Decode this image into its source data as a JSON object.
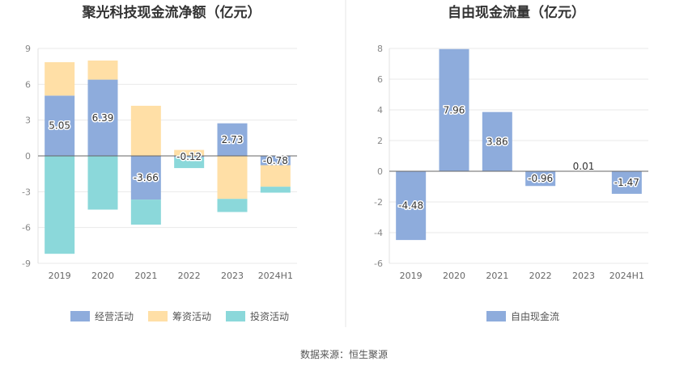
{
  "footer": {
    "source": "数据来源：恒生聚源"
  },
  "chart_data": [
    {
      "type": "bar",
      "stacked": true,
      "title": "聚光科技现金流净额（亿元）",
      "categories": [
        "2019",
        "2020",
        "2021",
        "2022",
        "2023",
        "2024H1"
      ],
      "ylim": [
        -9,
        9
      ],
      "yticks": [
        9,
        6,
        3,
        0,
        -3,
        -6,
        -9
      ],
      "grid": true,
      "legend": "bottom",
      "series": [
        {
          "name": "经营活动",
          "color": "#8EACDC",
          "values": [
            5.05,
            6.39,
            -3.66,
            -0.12,
            2.73,
            -0.78
          ],
          "labels": [
            "5.05",
            "6.39",
            "-3.66",
            "-0.12",
            "2.73",
            "-0.78"
          ]
        },
        {
          "name": "筹资活动",
          "color": "#FFDFA6",
          "values": [
            2.8,
            1.6,
            4.2,
            0.5,
            -3.6,
            -1.8
          ]
        },
        {
          "name": "投资活动",
          "color": "#8BD8DA",
          "values": [
            -8.2,
            -4.5,
            -2.1,
            -0.9,
            -1.1,
            -0.5
          ]
        }
      ]
    },
    {
      "type": "bar",
      "title": "自由现金流量（亿元）",
      "categories": [
        "2019",
        "2020",
        "2021",
        "2022",
        "2023",
        "2024H1"
      ],
      "ylim": [
        -6,
        8
      ],
      "yticks": [
        8,
        6,
        4,
        2,
        0,
        -2,
        -4,
        -6
      ],
      "grid": true,
      "legend": "bottom",
      "series": [
        {
          "name": "自由现金流",
          "color": "#8EACDC",
          "values": [
            -4.48,
            7.96,
            3.86,
            -0.96,
            0.01,
            -1.47
          ],
          "labels": [
            "-4.48",
            "7.96",
            "3.86",
            "-0.96",
            "0.01",
            "-1.47"
          ]
        }
      ]
    }
  ]
}
